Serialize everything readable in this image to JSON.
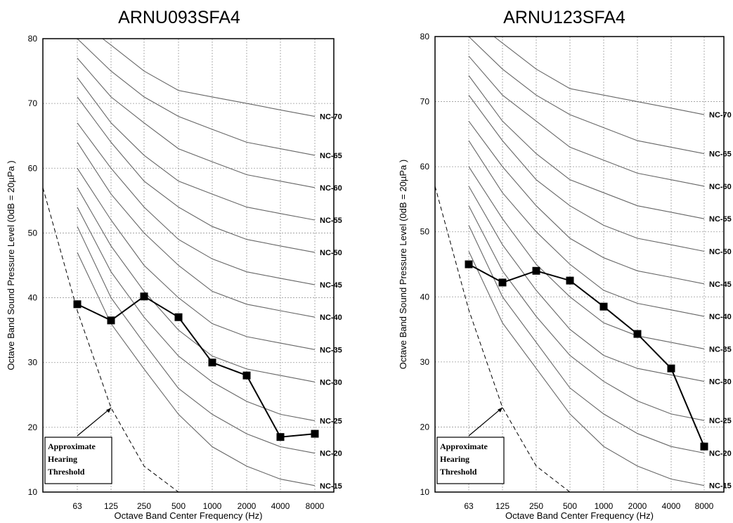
{
  "chart_data": [
    {
      "type": "line",
      "title": "ARNU093SFA4",
      "xlabel": "Octave Band Center Frequency (Hz)",
      "ylabel": "Octave Band Sound Pressure Level (0dB = 20µPa )",
      "categories": [
        "63",
        "125",
        "250",
        "500",
        "1000",
        "2000",
        "4000",
        "8000"
      ],
      "yticks": [
        "10",
        "20",
        "30",
        "40",
        "50",
        "60",
        "70",
        "80"
      ],
      "ylim": [
        10,
        80
      ],
      "grid": true,
      "series": [
        {
          "values": [
            39,
            36.5,
            40.2,
            37,
            30,
            28,
            18.5,
            19
          ]
        }
      ],
      "nc_curves": [
        {
          "name": "NC-70",
          "values": [
            83,
            79,
            75,
            72,
            71,
            70,
            69,
            68
          ]
        },
        {
          "name": "NC-65",
          "values": [
            80,
            75,
            71,
            68,
            66,
            64,
            63,
            62
          ]
        },
        {
          "name": "NC-60",
          "values": [
            77,
            71,
            67,
            63,
            61,
            59,
            58,
            57
          ]
        },
        {
          "name": "NC-55",
          "values": [
            74,
            67,
            62,
            58,
            56,
            54,
            53,
            52
          ]
        },
        {
          "name": "NC-50",
          "values": [
            71,
            64,
            58,
            54,
            51,
            49,
            48,
            47
          ]
        },
        {
          "name": "NC-45",
          "values": [
            67,
            60,
            54,
            49,
            46,
            44,
            43,
            42
          ]
        },
        {
          "name": "NC-40",
          "values": [
            64,
            56,
            50,
            45,
            41,
            39,
            38,
            37
          ]
        },
        {
          "name": "NC-35",
          "values": [
            60,
            52,
            45,
            40,
            36,
            34,
            33,
            32
          ]
        },
        {
          "name": "NC-30",
          "values": [
            57,
            48,
            41,
            35,
            31,
            29,
            28,
            27
          ]
        },
        {
          "name": "NC-25",
          "values": [
            54,
            44,
            37,
            31,
            27,
            24,
            22,
            21
          ]
        },
        {
          "name": "NC-20",
          "values": [
            51,
            40,
            33,
            26,
            22,
            19,
            17,
            16
          ]
        },
        {
          "name": "NC-15",
          "values": [
            47,
            36,
            29,
            22,
            17,
            14,
            12,
            11
          ]
        }
      ],
      "hearing_threshold": [
        [
          0,
          57
        ],
        [
          1,
          38
        ],
        [
          2,
          23
        ],
        [
          3,
          14
        ],
        [
          4,
          10
        ]
      ],
      "annotation": "Approximate Hearing Threshold"
    },
    {
      "type": "line",
      "title": "ARNU123SFA4",
      "xlabel": "Octave Band Center Frequency (Hz)",
      "ylabel": "Octave Band Sound Pressure Level (0dB = 20µPa )",
      "categories": [
        "63",
        "125",
        "250",
        "500",
        "1000",
        "2000",
        "4000",
        "8000"
      ],
      "yticks": [
        "10",
        "20",
        "30",
        "40",
        "50",
        "60",
        "70",
        "80"
      ],
      "ylim": [
        10,
        80
      ],
      "grid": true,
      "series": [
        {
          "values": [
            45,
            42.2,
            44,
            42.5,
            38.5,
            34.3,
            29,
            17
          ]
        }
      ],
      "nc_curves": [
        {
          "name": "NC-70",
          "values": [
            83,
            79,
            75,
            72,
            71,
            70,
            69,
            68
          ]
        },
        {
          "name": "NC-65",
          "values": [
            80,
            75,
            71,
            68,
            66,
            64,
            63,
            62
          ]
        },
        {
          "name": "NC-60",
          "values": [
            77,
            71,
            67,
            63,
            61,
            59,
            58,
            57
          ]
        },
        {
          "name": "NC-55",
          "values": [
            74,
            67,
            62,
            58,
            56,
            54,
            53,
            52
          ]
        },
        {
          "name": "NC-50",
          "values": [
            71,
            64,
            58,
            54,
            51,
            49,
            48,
            47
          ]
        },
        {
          "name": "NC-45",
          "values": [
            67,
            60,
            54,
            49,
            46,
            44,
            43,
            42
          ]
        },
        {
          "name": "NC-40",
          "values": [
            64,
            56,
            50,
            45,
            41,
            39,
            38,
            37
          ]
        },
        {
          "name": "NC-35",
          "values": [
            60,
            52,
            45,
            40,
            36,
            34,
            33,
            32
          ]
        },
        {
          "name": "NC-30",
          "values": [
            57,
            48,
            41,
            35,
            31,
            29,
            28,
            27
          ]
        },
        {
          "name": "NC-25",
          "values": [
            54,
            44,
            37,
            31,
            27,
            24,
            22,
            21
          ]
        },
        {
          "name": "NC-20",
          "values": [
            51,
            40,
            33,
            26,
            22,
            19,
            17,
            16
          ]
        },
        {
          "name": "NC-15",
          "values": [
            47,
            36,
            29,
            22,
            17,
            14,
            12,
            11
          ]
        }
      ],
      "hearing_threshold": [
        [
          0,
          57
        ],
        [
          1,
          38
        ],
        [
          2,
          23
        ],
        [
          3,
          14
        ],
        [
          4,
          10
        ]
      ],
      "annotation": "Approximate Hearing Threshold"
    }
  ],
  "colors": {
    "nc_curve": "#666666",
    "series": "#000000",
    "grid": "#9a9a9a",
    "frame": "#000000"
  }
}
